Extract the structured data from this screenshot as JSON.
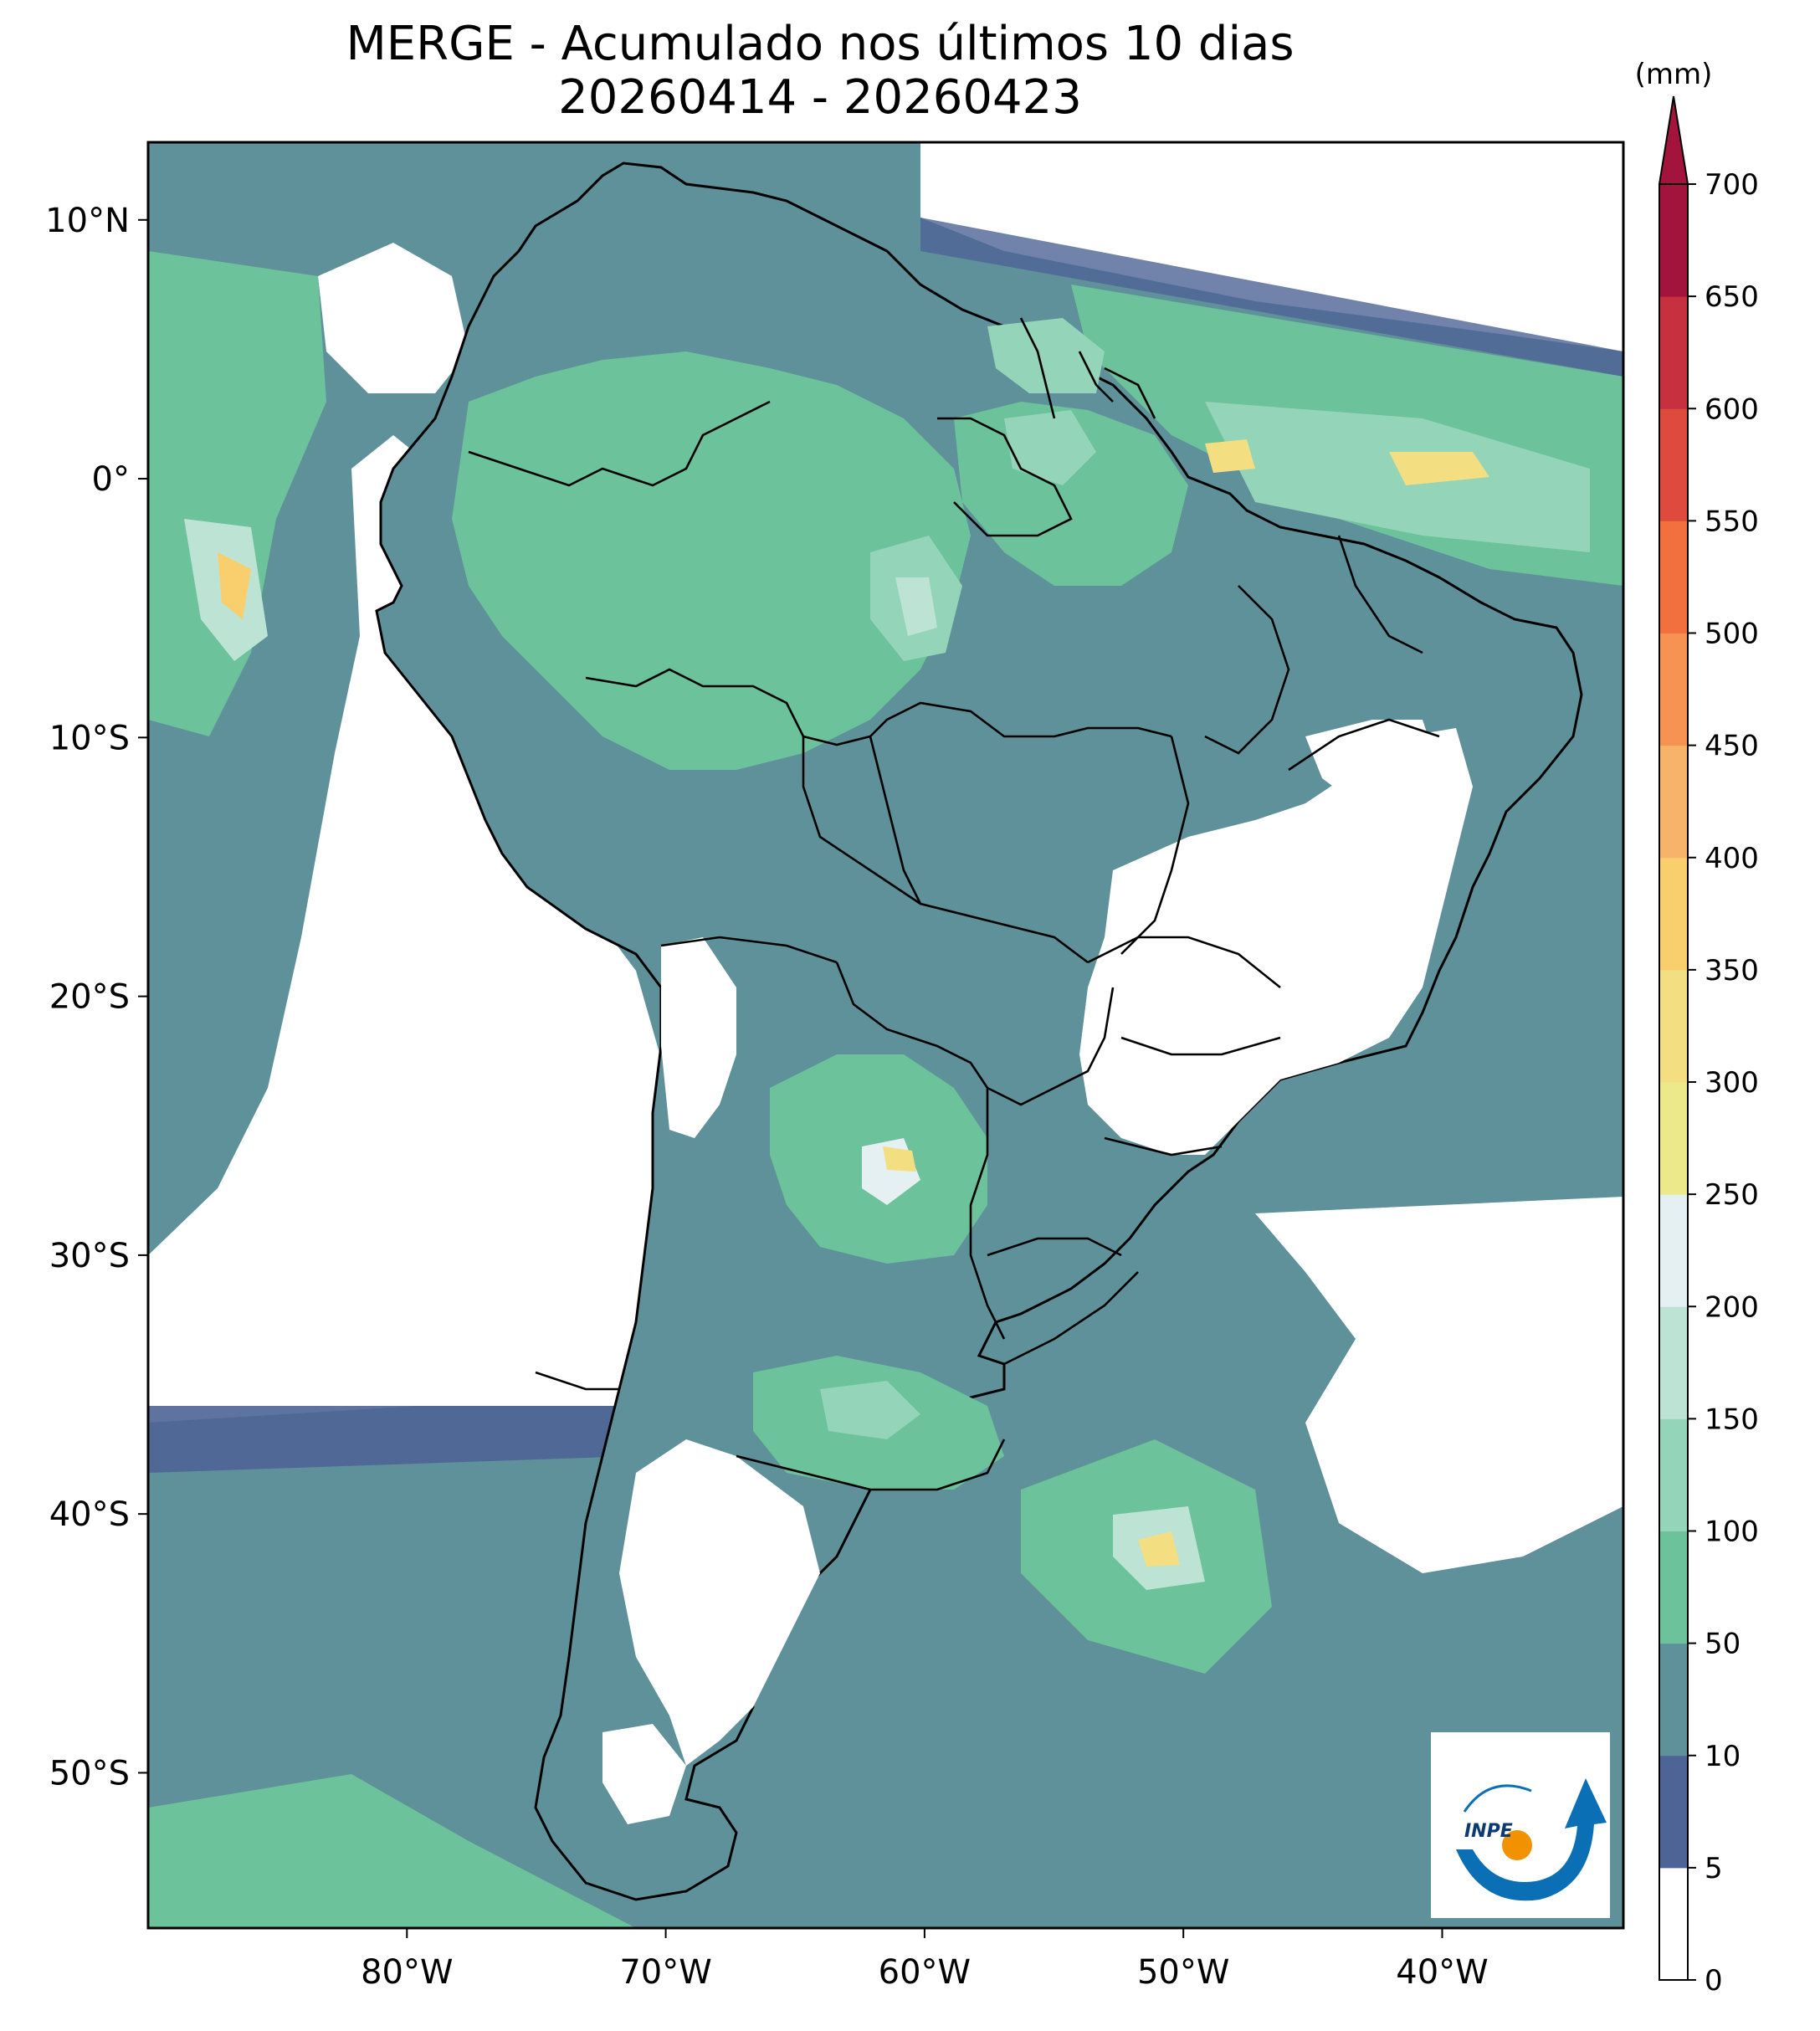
{
  "title": {
    "line1": "MERGE - Acumulado nos últimos 10 dias",
    "line2": "20260414 - 20260423"
  },
  "map": {
    "lon_range": [
      -90,
      -33
    ],
    "lat_range": [
      -56,
      13
    ],
    "lon_ticks": [
      {
        "value": -80,
        "label": "80°W"
      },
      {
        "value": -70,
        "label": "70°W"
      },
      {
        "value": -60,
        "label": "60°W"
      },
      {
        "value": -50,
        "label": "50°W"
      },
      {
        "value": -40,
        "label": "40°W"
      }
    ],
    "lat_ticks": [
      {
        "value": 10,
        "label": "10°N"
      },
      {
        "value": 0,
        "label": "0°"
      },
      {
        "value": -10,
        "label": "10°S"
      },
      {
        "value": -20,
        "label": "20°S"
      },
      {
        "value": -30,
        "label": "30°S"
      },
      {
        "value": -40,
        "label": "40°S"
      },
      {
        "value": -50,
        "label": "50°S"
      }
    ]
  },
  "colorbar": {
    "unit": "(mm)",
    "levels": [
      0,
      5,
      10,
      50,
      100,
      150,
      200,
      250,
      300,
      350,
      400,
      450,
      500,
      550,
      600,
      650,
      700
    ],
    "colors": [
      "#ffffff",
      "#4e6496",
      "#5e9199",
      "#6cc29a",
      "#94d4b8",
      "#bde3d4",
      "#e4f0f2",
      "#ebe98a",
      "#f4de82",
      "#f9cf6e",
      "#f8b36a",
      "#f69352",
      "#f26f3e",
      "#de4b3e",
      "#c7303e",
      "#a3143c"
    ],
    "extend_color": "#a3143c"
  },
  "colors": {
    "land_outline": "#000000",
    "water_white": "#ffffff"
  },
  "logo": {
    "text": "INPE",
    "orange": "#f39200",
    "blue": "#0a6fb5"
  }
}
